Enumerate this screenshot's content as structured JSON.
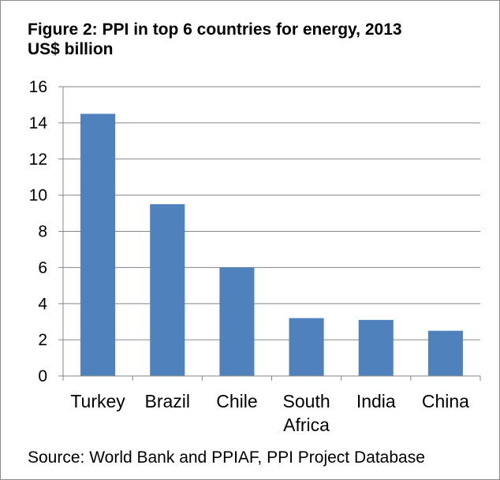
{
  "chart_data": {
    "type": "bar",
    "title": "Figure 2: PPI in top 6 countries for energy, 2013\nUS$ billion",
    "xlabel": "",
    "ylabel": "",
    "categories": [
      "Turkey",
      "Brazil",
      "Chile",
      "South Africa",
      "India",
      "China"
    ],
    "series": [
      {
        "values": [
          14.5,
          9.5,
          6.0,
          3.2,
          3.1,
          2.5
        ]
      }
    ],
    "ylim": [
      0,
      16
    ],
    "yticks": [
      "0",
      "2",
      "4",
      "6",
      "8",
      "10",
      "12",
      "14",
      "16"
    ],
    "grid": true,
    "bar_color": "#4f81bd",
    "grid_color": "#868686",
    "legend": "none"
  },
  "source": "Source: World Bank and PPIAF, PPI Project Database"
}
